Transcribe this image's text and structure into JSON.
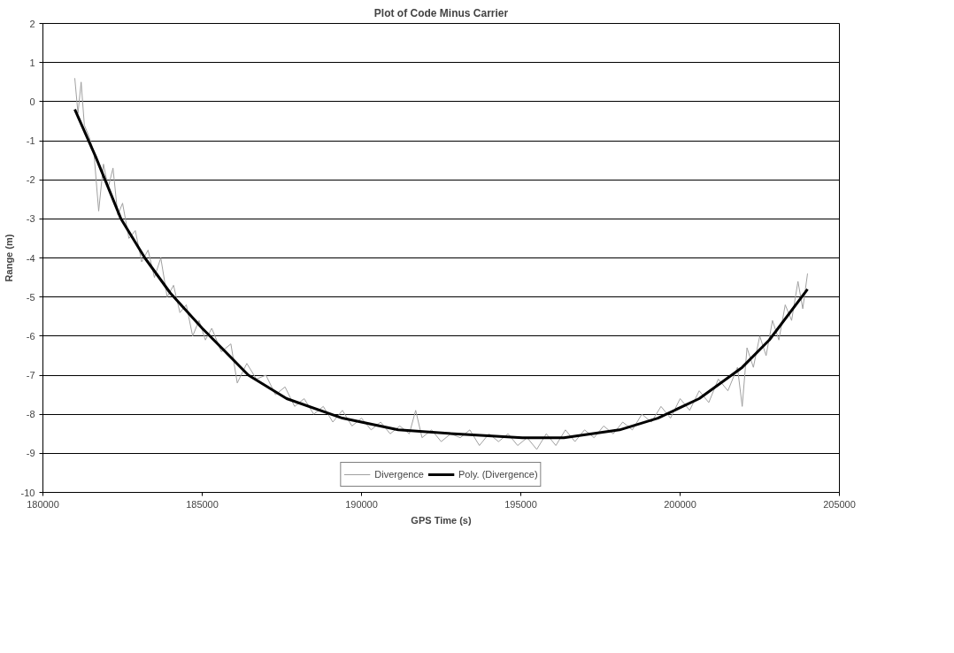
{
  "chart_data": {
    "type": "line",
    "title": "Plot of Code Minus Carrier",
    "xlabel": "GPS Time (s)",
    "ylabel": "Range (m)",
    "xlim": [
      180000,
      205000
    ],
    "xticks": [
      180000,
      185000,
      190000,
      195000,
      200000,
      205000
    ],
    "ylim": [
      -10,
      2
    ],
    "yticks": [
      -10,
      -9,
      -8,
      -7,
      -6,
      -5,
      -4,
      -3,
      -2,
      -1,
      0,
      1,
      2
    ],
    "grid": "y",
    "legend": "bottom",
    "line_style": "solid",
    "series": [
      {
        "name": "Divergence",
        "color": "#a0a0a0",
        "x": [
          181000,
          181100,
          181200,
          181300,
          181450,
          181600,
          181750,
          181900,
          182050,
          182200,
          182350,
          182500,
          182700,
          182900,
          183100,
          183300,
          183500,
          183700,
          183900,
          184100,
          184300,
          184500,
          184700,
          184900,
          185100,
          185300,
          185600,
          185900,
          186100,
          186400,
          186700,
          187000,
          187300,
          187600,
          187900,
          188200,
          188500,
          188800,
          189100,
          189400,
          189700,
          190000,
          190300,
          190600,
          190900,
          191200,
          191500,
          191700,
          191900,
          192200,
          192500,
          192800,
          193100,
          193400,
          193700,
          194000,
          194300,
          194600,
          194900,
          195200,
          195500,
          195800,
          196100,
          196400,
          196700,
          197000,
          197300,
          197600,
          197900,
          198200,
          198500,
          198800,
          199100,
          199400,
          199700,
          200000,
          200300,
          200600,
          200900,
          201200,
          201500,
          201800,
          201950,
          202100,
          202300,
          202500,
          202700,
          202900,
          203100,
          203300,
          203500,
          203700,
          203850,
          204000
        ],
        "values": [
          0.6,
          -0.3,
          0.5,
          -0.6,
          -0.9,
          -1.3,
          -2.8,
          -1.6,
          -2.2,
          -1.7,
          -2.9,
          -2.6,
          -3.5,
          -3.3,
          -4.1,
          -3.8,
          -4.5,
          -4.0,
          -5.0,
          -4.7,
          -5.4,
          -5.2,
          -6.0,
          -5.6,
          -6.1,
          -5.8,
          -6.4,
          -6.2,
          -7.2,
          -6.7,
          -7.1,
          -7.0,
          -7.5,
          -7.3,
          -7.8,
          -7.6,
          -8.0,
          -7.8,
          -8.2,
          -7.9,
          -8.3,
          -8.1,
          -8.4,
          -8.2,
          -8.5,
          -8.3,
          -8.5,
          -7.9,
          -8.6,
          -8.4,
          -8.7,
          -8.5,
          -8.6,
          -8.4,
          -8.8,
          -8.5,
          -8.7,
          -8.5,
          -8.8,
          -8.6,
          -8.9,
          -8.5,
          -8.8,
          -8.4,
          -8.7,
          -8.4,
          -8.6,
          -8.3,
          -8.5,
          -8.2,
          -8.4,
          -8.0,
          -8.2,
          -7.8,
          -8.1,
          -7.6,
          -7.9,
          -7.4,
          -7.7,
          -7.1,
          -7.4,
          -6.8,
          -7.8,
          -6.3,
          -6.8,
          -6.0,
          -6.5,
          -5.6,
          -6.1,
          -5.2,
          -5.6,
          -4.6,
          -5.3,
          -4.4
        ]
      },
      {
        "name": "Poly. (Divergence)",
        "color": "#000000",
        "x": [
          181000,
          181650,
          182450,
          183200,
          184000,
          185000,
          186450,
          187650,
          189400,
          191150,
          192900,
          195050,
          196350,
          198100,
          199300,
          200600,
          201950,
          202800,
          204000
        ],
        "values": [
          -0.2,
          -1.4,
          -3.0,
          -4.0,
          -4.9,
          -5.8,
          -7.0,
          -7.6,
          -8.1,
          -8.4,
          -8.5,
          -8.6,
          -8.6,
          -8.4,
          -8.1,
          -7.6,
          -6.8,
          -6.1,
          -4.8
        ]
      }
    ]
  }
}
